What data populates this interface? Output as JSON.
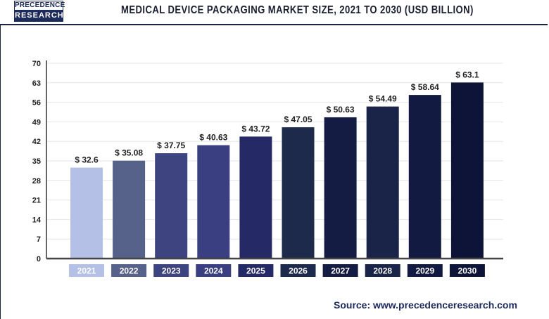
{
  "header": {
    "logo_line1": "PRECEDENCE",
    "logo_line2": "RESEARCH",
    "title": "MEDICAL DEVICE PACKAGING MARKET SIZE, 2021 TO 2030 (USD BILLION)"
  },
  "source": "Source: www.precedenceresearch.com",
  "chart_data": {
    "type": "bar",
    "title": "MEDICAL DEVICE PACKAGING MARKET SIZE, 2021 TO 2030 (USD BILLION)",
    "categories": [
      "2021",
      "2022",
      "2023",
      "2024",
      "2025",
      "2026",
      "2027",
      "2028",
      "2029",
      "2030"
    ],
    "values": [
      32.6,
      35.08,
      37.75,
      40.63,
      43.72,
      47.05,
      50.63,
      54.49,
      58.64,
      63.1
    ],
    "data_labels": [
      "$ 32.6",
      "$ 35.08",
      "$ 37.75",
      "$ 40.63",
      "$ 43.72",
      "$ 47.05",
      "$ 50.63",
      "$ 54.49",
      "$ 58.64",
      "$ 63.1"
    ],
    "colors": [
      "#b4c0e6",
      "#56628a",
      "#3e4480",
      "#393f80",
      "#252a66",
      "#1e2a4c",
      "#141c44",
      "#1a2448",
      "#131a42",
      "#0e1438"
    ],
    "yticks": [
      0,
      7,
      14,
      21,
      28,
      35,
      42,
      49,
      56,
      63,
      70
    ],
    "ylim": [
      0,
      70
    ],
    "grid": true,
    "xlabel": "",
    "ylabel": ""
  }
}
